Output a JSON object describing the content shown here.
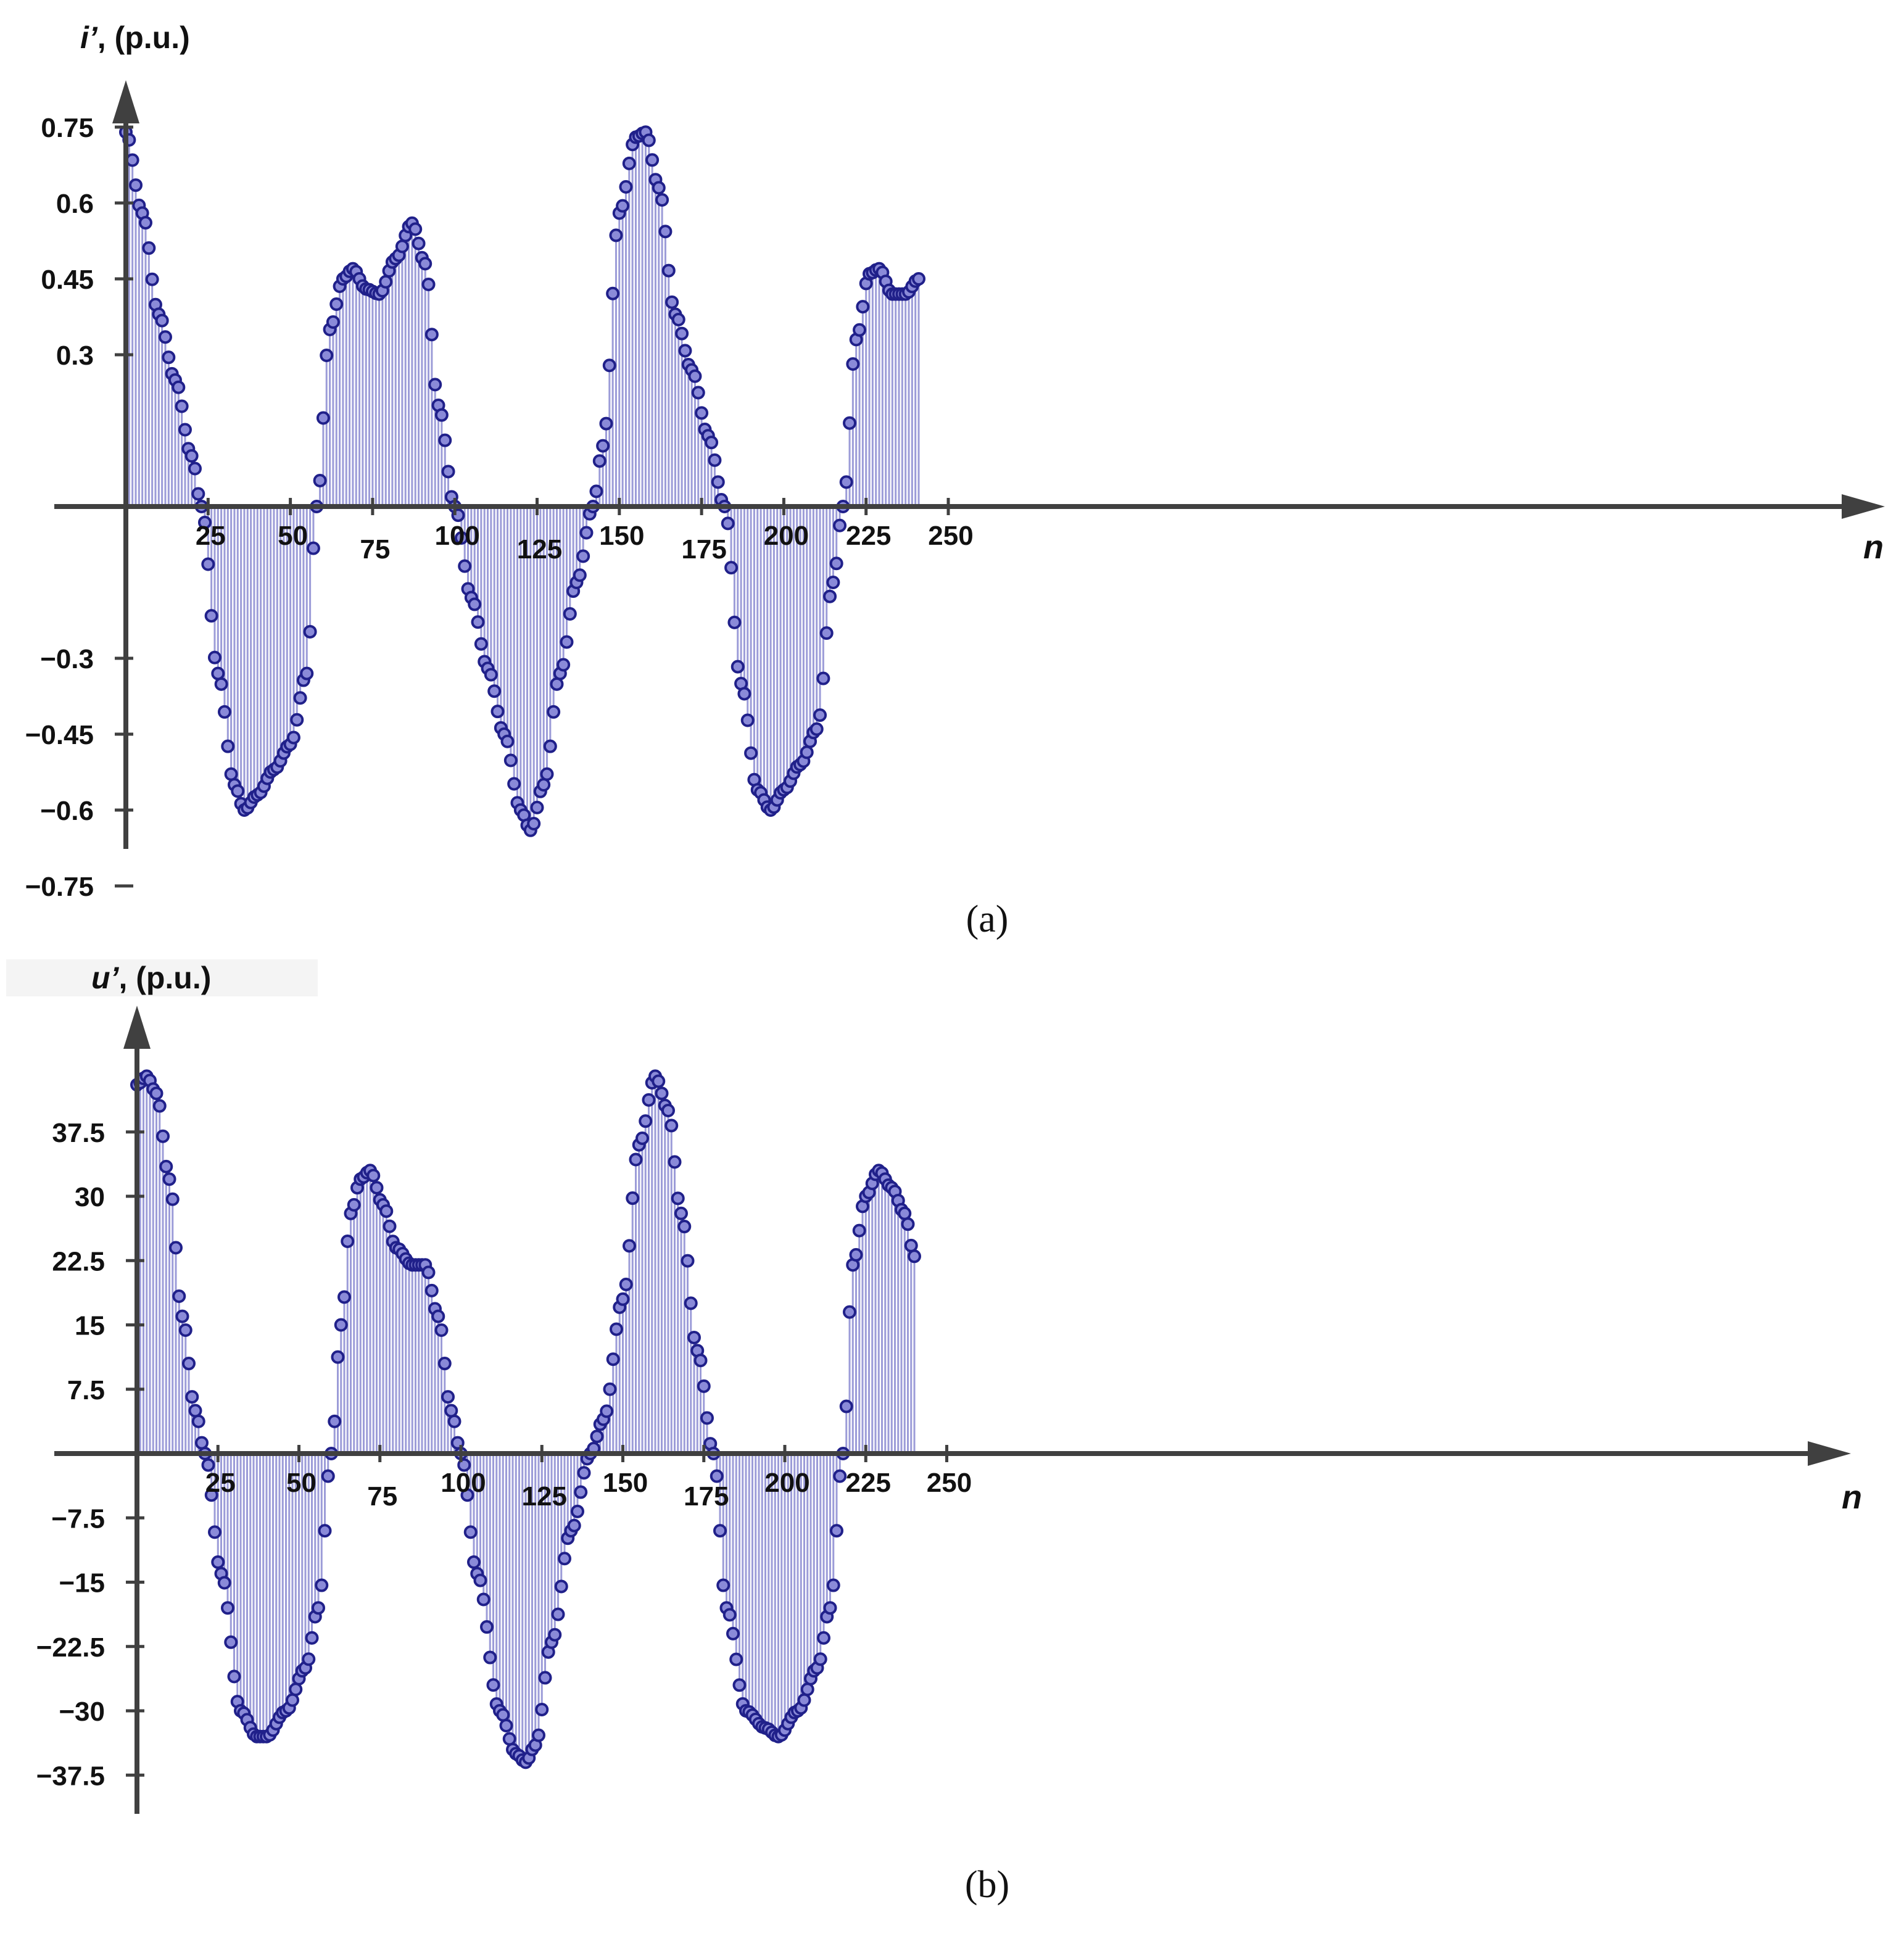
{
  "chart_data": [
    {
      "type": "stem",
      "panel_label": "(a)",
      "ylabel_var": "i’",
      "ylabel_unit": ", (p.u.)",
      "xlabel": "n",
      "xticks": [
        25,
        50,
        75,
        100,
        125,
        150,
        175,
        200,
        225,
        250
      ],
      "yticks": [
        0.75,
        0.6,
        0.45,
        0.3,
        -0.3,
        -0.45,
        -0.6,
        -0.75
      ],
      "ytick_labels": [
        "0.75",
        "0.6",
        "0.45",
        "0.3",
        "−0.3",
        "−0.45",
        "−0.6",
        "−0.75"
      ],
      "n_samples": 243,
      "x": [
        0,
        5,
        10,
        15,
        20,
        23,
        28,
        33,
        36,
        40,
        45,
        50,
        55,
        58,
        62,
        66,
        69,
        73,
        77,
        82,
        87,
        91,
        95,
        100,
        105,
        110,
        115,
        120,
        123,
        127,
        132,
        137,
        142,
        145,
        150,
        155,
        158,
        162,
        167,
        172,
        177,
        182,
        187,
        192,
        196,
        200,
        205,
        210,
        215,
        218,
        222,
        226,
        229,
        233,
        237,
        241
      ],
      "y": [
        0.74,
        0.58,
        0.38,
        0.25,
        0.1,
        0.0,
        -0.33,
        -0.55,
        -0.6,
        -0.57,
        -0.52,
        -0.47,
        -0.33,
        0.0,
        0.35,
        0.45,
        0.47,
        0.43,
        0.42,
        0.49,
        0.56,
        0.48,
        0.2,
        0.0,
        -0.18,
        -0.32,
        -0.45,
        -0.6,
        -0.64,
        -0.55,
        -0.33,
        -0.15,
        0.0,
        0.12,
        0.58,
        0.73,
        0.74,
        0.63,
        0.38,
        0.27,
        0.14,
        0.0,
        -0.35,
        -0.56,
        -0.6,
        -0.56,
        -0.51,
        -0.44,
        -0.15,
        0.0,
        0.33,
        0.46,
        0.47,
        0.42,
        0.42,
        0.45
      ],
      "ylim": [
        -0.85,
        0.95
      ],
      "xlim": [
        0,
        265
      ]
    },
    {
      "type": "stem",
      "panel_label": "(b)",
      "ylabel_var": "u’",
      "ylabel_unit": ", (p.u.)",
      "xlabel": "n",
      "xticks": [
        25,
        50,
        75,
        100,
        125,
        150,
        175,
        200,
        225,
        250
      ],
      "yticks": [
        37.5,
        30,
        22.5,
        15,
        7.5,
        -7.5,
        -15,
        -22.5,
        -30,
        -37.5
      ],
      "ytick_labels": [
        "37.5",
        "30",
        "22.5",
        "15",
        "7.5",
        "−7.5",
        "−15",
        "−22.5",
        "−30",
        "−37.5"
      ],
      "n_samples": 240,
      "x": [
        0,
        3,
        6,
        10,
        14,
        18,
        21,
        26,
        32,
        37,
        40,
        46,
        52,
        56,
        60,
        63,
        66,
        69,
        72,
        76,
        80,
        85,
        89,
        93,
        97,
        100,
        105,
        112,
        117,
        120,
        123,
        128,
        134,
        140,
        144,
        150,
        155,
        160,
        164,
        168,
        173,
        178,
        182,
        188,
        194,
        198,
        204,
        210,
        214,
        218,
        221,
        225,
        229,
        233,
        237,
        240
      ],
      "y": [
        43,
        44,
        42,
        32,
        16,
        5,
        0,
        -14,
        -30,
        -33,
        -33,
        -30,
        -25,
        -18,
        0,
        15,
        28,
        32,
        33,
        29,
        24,
        22,
        22,
        16,
        5,
        0,
        -14,
        -30,
        -35,
        -36,
        -34,
        -22,
        -9,
        0,
        4,
        18,
        36,
        44,
        40,
        28,
        12,
        0,
        -18,
        -30,
        -32,
        -33,
        -30,
        -25,
        -18,
        0,
        22,
        30,
        33,
        31,
        28,
        23
      ],
      "ylim": [
        -42,
        52
      ],
      "xlim": [
        0,
        265
      ]
    }
  ]
}
